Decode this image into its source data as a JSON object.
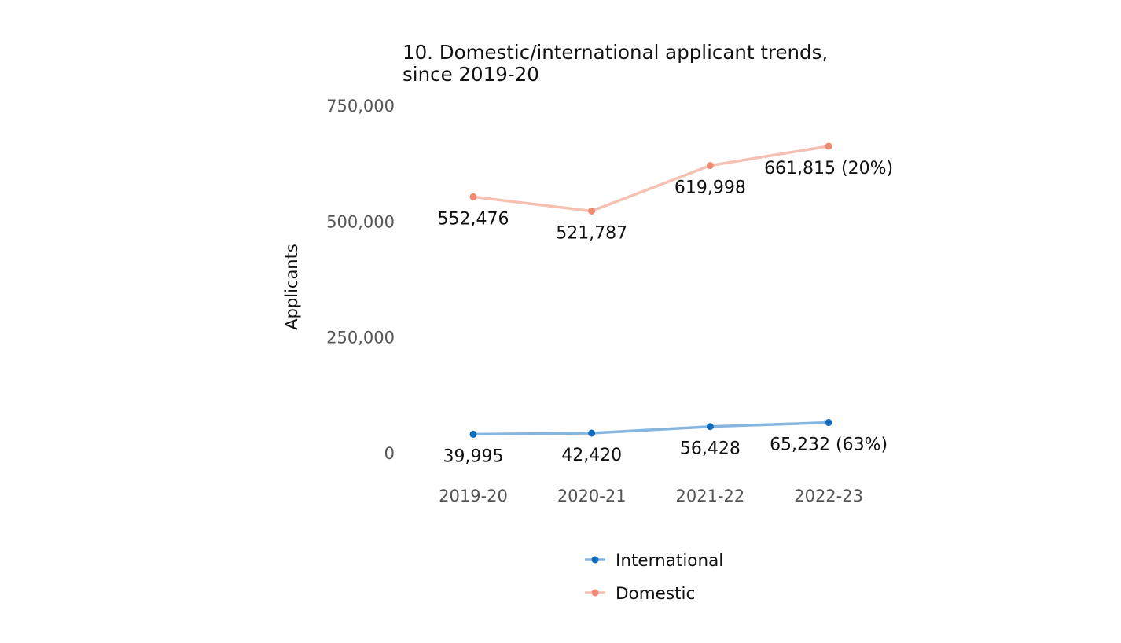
{
  "chart_data": {
    "type": "line",
    "title_lines": [
      "10. Domestic/international applicant trends,",
      "since 2019-20"
    ],
    "xlabel": "",
    "ylabel": "Applicants",
    "categories": [
      "2019-20",
      "2020-21",
      "2021-22",
      "2022-23"
    ],
    "ylim": [
      0,
      750000
    ],
    "yticks": [
      0,
      250000,
      500000,
      750000
    ],
    "ytick_labels": [
      "0",
      "250,000",
      "500,000",
      "750,000"
    ],
    "grid": false,
    "legend_position": "bottom",
    "series": [
      {
        "name": "International",
        "color": "#0f6cbd",
        "line_color": "#86b6e0",
        "values": [
          39995,
          42420,
          56428,
          65232
        ],
        "labels": [
          "39,995",
          "42,420",
          "56,428",
          "65,232 (63%)"
        ]
      },
      {
        "name": "Domestic",
        "color": "#f08a73",
        "line_color": "#f6c0b3",
        "values": [
          552476,
          521787,
          619998,
          661815
        ],
        "labels": [
          "552,476",
          "521,787",
          "619,998",
          "661,815 (20%)"
        ]
      }
    ]
  }
}
